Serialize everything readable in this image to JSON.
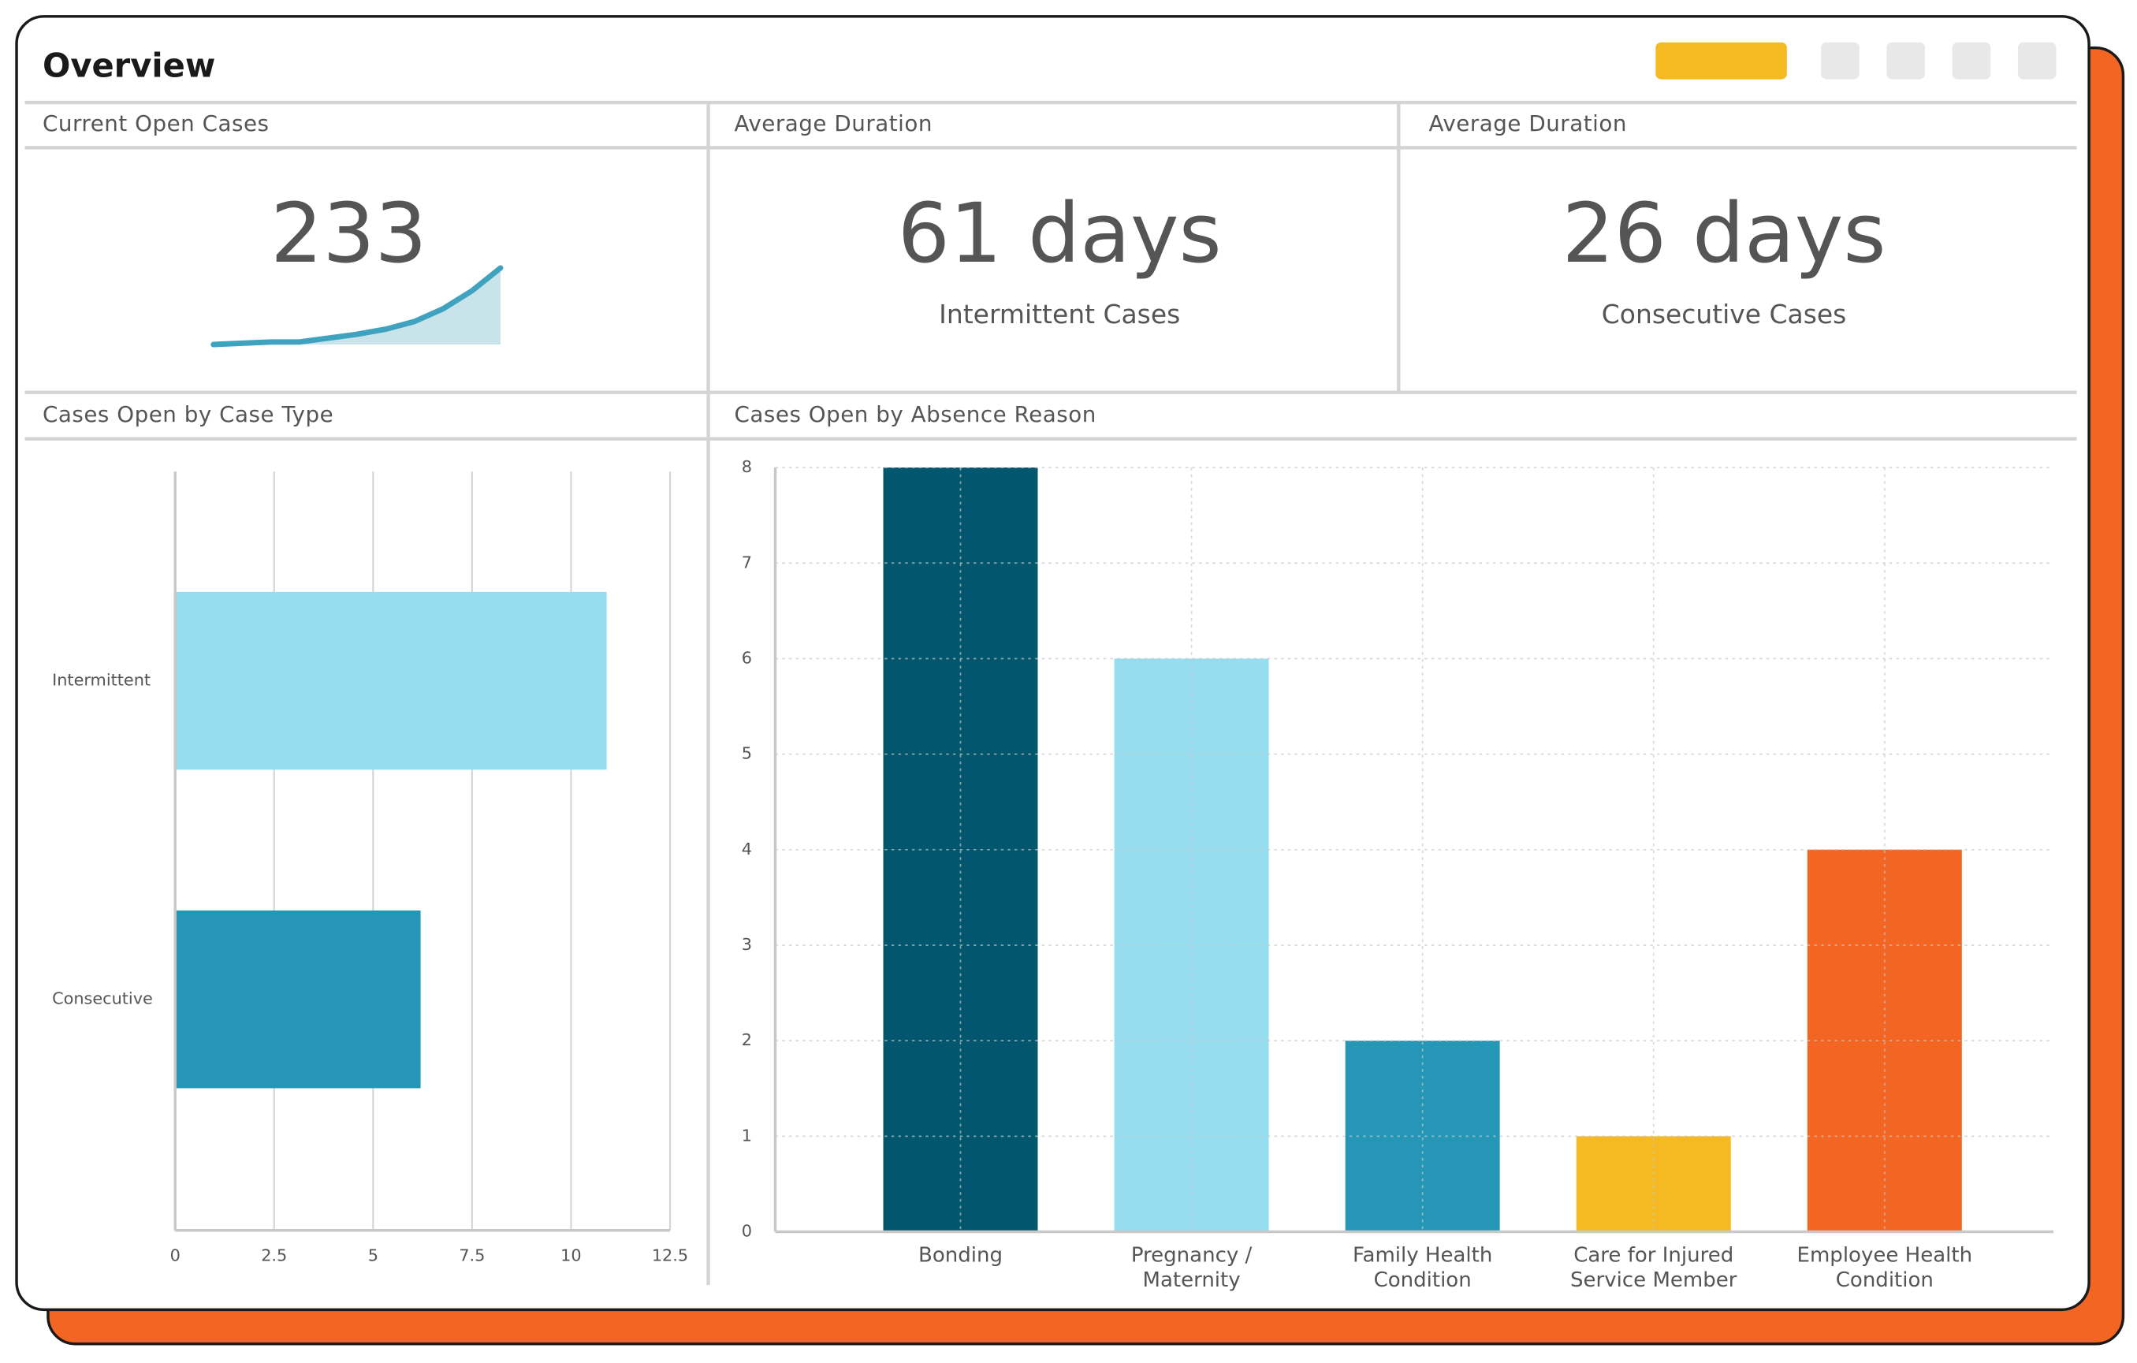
{
  "header": {
    "title": "Overview"
  },
  "cards": [
    {
      "title": "Current Open Cases",
      "value": "233"
    },
    {
      "title": "Average Duration",
      "value": "61 days",
      "subtitle": "Intermittent Cases"
    },
    {
      "title": "Average Duration",
      "value": "26 days",
      "subtitle": "Consecutive Cases"
    }
  ],
  "chart_data": [
    {
      "type": "area",
      "values": [
        0,
        0.5,
        1,
        1,
        2.5,
        4,
        6,
        9,
        14,
        21,
        30
      ],
      "color": "#3fa3bf",
      "fill": "#c9e3ea"
    },
    {
      "type": "hbar",
      "title": "Cases Open by Case Type",
      "categories": [
        "Intermittent",
        "Consecutive"
      ],
      "values": [
        10.9,
        6.2
      ],
      "colors": [
        "#96ddf0",
        "#2596b6"
      ],
      "xlim": [
        0,
        12.5
      ],
      "xticks": [
        0,
        2.5,
        5,
        7.5,
        10,
        12.5
      ],
      "grid": true
    },
    {
      "type": "bar",
      "title": "Cases Open by Absence Reason",
      "categories": [
        "Bonding",
        "Pregnancy / Maternity",
        "Family Health Condition",
        "Care for Injured Service Member",
        "Employee Health Condition"
      ],
      "values": [
        8,
        6,
        2,
        1,
        4
      ],
      "colors": [
        "#02566d",
        "#96ddf0",
        "#2596b6",
        "#f5b922",
        "#f26522"
      ],
      "ylim": [
        0,
        8
      ],
      "yticks": [
        0,
        1,
        2,
        3,
        4,
        5,
        6,
        7,
        8
      ],
      "grid": true
    }
  ]
}
